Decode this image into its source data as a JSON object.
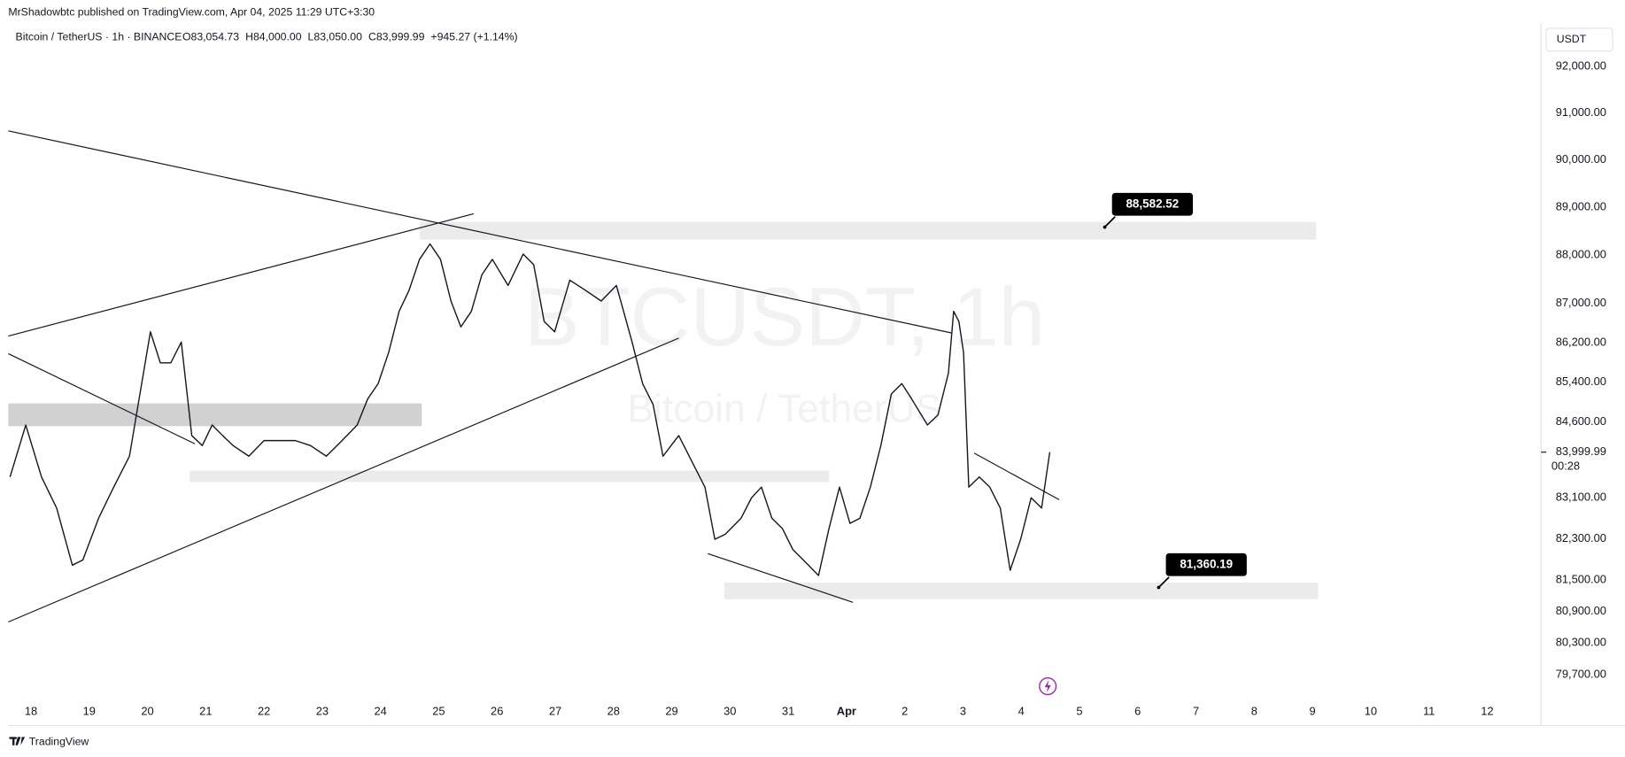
{
  "header": {
    "published": "MrShadowbtc published on TradingView.com, Apr 04, 2025 11:29 UTC+3:30",
    "ohlc": [
      "O83,054.73",
      "H84,000.00",
      "L83,050.00",
      "C83,999.99",
      "+945.27 (+1.14%)"
    ],
    "currency": "USDT"
  },
  "chart_data": {
    "type": "line",
    "log_scale": true,
    "watermark": {
      "symbol": "BTCUSDT, 1h",
      "name": "Bitcoin / TetherUS"
    },
    "x": [
      -0.36,
      -0.09,
      0.18,
      0.44,
      0.71,
      0.89,
      1.16,
      1.42,
      1.69,
      1.87,
      2.05,
      2.22,
      2.4,
      2.58,
      2.76,
      2.94,
      3.11,
      3.29,
      3.47,
      3.74,
      4.0,
      4.27,
      4.54,
      4.8,
      5.07,
      5.34,
      5.6,
      5.78,
      5.96,
      6.14,
      6.32,
      6.49,
      6.67,
      6.85,
      7.03,
      7.21,
      7.38,
      7.56,
      7.74,
      7.92,
      8.19,
      8.45,
      8.63,
      8.81,
      8.99,
      9.25,
      9.52,
      9.79,
      10.05,
      10.32,
      10.5,
      10.68,
      10.85,
      11.12,
      11.3,
      11.57,
      11.74,
      11.92,
      12.19,
      12.37,
      12.54,
      12.72,
      12.9,
      13.08,
      13.26,
      13.52,
      13.7,
      13.88,
      14.06,
      14.23,
      14.41,
      14.59,
      14.77,
      14.95,
      15.12,
      15.39,
      15.57,
      15.75,
      15.84,
      15.93,
      16.01,
      16.1,
      16.28,
      16.46,
      16.64,
      16.81,
      16.99,
      17.17,
      17.35,
      17.49
    ],
    "series": [
      {
        "name": "Bitcoin / TetherUS · 1h · BINANCE",
        "color": "#131722",
        "values": [
          83510,
          84540,
          83510,
          82900,
          81790,
          81890,
          82700,
          83310,
          83920,
          85160,
          86420,
          85790,
          85790,
          86210,
          84330,
          84130,
          84540,
          84330,
          84130,
          83920,
          84230,
          84230,
          84230,
          84130,
          83920,
          84230,
          84540,
          85060,
          85370,
          86000,
          86840,
          87270,
          87910,
          88230,
          87910,
          87050,
          86520,
          86840,
          87590,
          87910,
          87370,
          88020,
          87800,
          86630,
          86420,
          87480,
          87270,
          87050,
          87370,
          86210,
          85370,
          84950,
          83920,
          84330,
          83920,
          83310,
          82290,
          82390,
          82700,
          83100,
          83310,
          82700,
          82500,
          82090,
          81890,
          81590,
          82500,
          83310,
          82600,
          82700,
          83310,
          84130,
          85160,
          85370,
          85060,
          84540,
          84740,
          85580,
          86840,
          86630,
          86000,
          83310,
          83510,
          83310,
          82900,
          81690,
          82290,
          83100,
          82900,
          83999.99
        ]
      }
    ],
    "xlim": [
      -0.39,
      25.8
    ],
    "xticks": [
      {
        "value": 0,
        "label": "18"
      },
      {
        "value": 1,
        "label": "19"
      },
      {
        "value": 2,
        "label": "20"
      },
      {
        "value": 3,
        "label": "21"
      },
      {
        "value": 4,
        "label": "22"
      },
      {
        "value": 5,
        "label": "23"
      },
      {
        "value": 6,
        "label": "24"
      },
      {
        "value": 7,
        "label": "25"
      },
      {
        "value": 8,
        "label": "26"
      },
      {
        "value": 9,
        "label": "27"
      },
      {
        "value": 10,
        "label": "28"
      },
      {
        "value": 11,
        "label": "29"
      },
      {
        "value": 12,
        "label": "30"
      },
      {
        "value": 13,
        "label": "31"
      },
      {
        "value": 14,
        "label": "Apr"
      },
      {
        "value": 15,
        "label": "2"
      },
      {
        "value": 16,
        "label": "3"
      },
      {
        "value": 17,
        "label": "4"
      },
      {
        "value": 18,
        "label": "5"
      },
      {
        "value": 19,
        "label": "6"
      },
      {
        "value": 20,
        "label": "7"
      },
      {
        "value": 21,
        "label": "8"
      },
      {
        "value": 22,
        "label": "9"
      },
      {
        "value": 23,
        "label": "10"
      },
      {
        "value": 24,
        "label": "11"
      },
      {
        "value": 25,
        "label": "12"
      }
    ],
    "ylim": [
      79234,
      92361
    ],
    "yticks": [
      {
        "value": 92000,
        "label": "92,000.00"
      },
      {
        "value": 91000,
        "label": "91,000.00"
      },
      {
        "value": 90000,
        "label": "90,000.00"
      },
      {
        "value": 89000,
        "label": "89,000.00"
      },
      {
        "value": 88000,
        "label": "88,000.00"
      },
      {
        "value": 87000,
        "label": "87,000.00"
      },
      {
        "value": 86200,
        "label": "86,200.00"
      },
      {
        "value": 85400,
        "label": "85,400.00"
      },
      {
        "value": 84600,
        "label": "84,600.00"
      },
      {
        "value": 83100,
        "label": "83,100.00"
      },
      {
        "value": 82300,
        "label": "82,300.00"
      },
      {
        "value": 81500,
        "label": "81,500.00"
      },
      {
        "value": 80900,
        "label": "80,900.00"
      },
      {
        "value": 80300,
        "label": "80,300.00"
      },
      {
        "value": 79700,
        "label": "79,700.00"
      }
    ],
    "last_price": {
      "value": 83999.99,
      "label": "83,999.99"
    },
    "countdown": "00:28",
    "annotations": [
      {
        "value": 88582.52,
        "label": "88,582.52"
      },
      {
        "value": 81360.19,
        "label": "81,360.19"
      }
    ],
    "grid": false
  },
  "footer": {
    "brand": "TradingView"
  }
}
